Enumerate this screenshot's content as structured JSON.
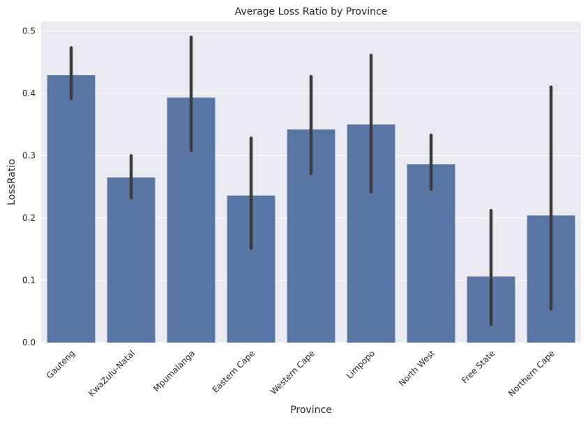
{
  "chart_data": {
    "type": "bar",
    "title": "Average Loss Ratio by Province",
    "xlabel": "Province",
    "ylabel": "LossRatio",
    "ylim": [
      0,
      0.515
    ],
    "yticks": [
      0.0,
      0.1,
      0.2,
      0.3,
      0.4,
      0.5
    ],
    "ytick_labels": [
      "0.0",
      "0.1",
      "0.2",
      "0.3",
      "0.4",
      "0.5"
    ],
    "grid": true,
    "categories": [
      "Gauteng",
      "KwaZulu-Natal",
      "Mpumalanga",
      "Eastern Cape",
      "Western Cape",
      "Limpopo",
      "North West",
      "Free State",
      "Northern Cape"
    ],
    "values": [
      0.429,
      0.265,
      0.393,
      0.236,
      0.342,
      0.35,
      0.286,
      0.106,
      0.204
    ],
    "error_low": [
      0.391,
      0.232,
      0.308,
      0.151,
      0.271,
      0.242,
      0.246,
      0.029,
      0.054
    ],
    "error_high": [
      0.473,
      0.3,
      0.49,
      0.328,
      0.427,
      0.461,
      0.333,
      0.212,
      0.41
    ],
    "colors": {
      "bar": "#5875a4",
      "error": "#3b3b3b",
      "plot_bg": "#eaeaf2",
      "grid": "#ffffff",
      "text": "#262626"
    }
  }
}
